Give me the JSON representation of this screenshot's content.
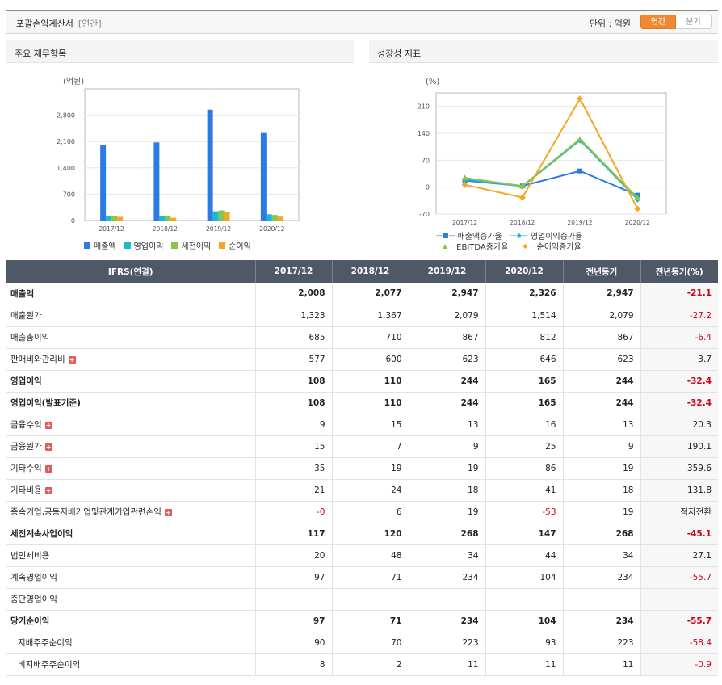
{
  "header": {
    "title": "포괄손익계산서",
    "subtitle": "[연간]",
    "unit": "단위 : 억원",
    "toggle_annual": "연간",
    "toggle_quarter": "분기"
  },
  "panels": {
    "left_title": "주요 재무항목",
    "right_title": "성장성 지표"
  },
  "chart_data": [
    {
      "type": "bar",
      "unit_label": "(억원)",
      "categories": [
        "2017/12",
        "2018/12",
        "2019/12",
        "2020/12"
      ],
      "ylim": [
        0,
        3500
      ],
      "yticks": [
        0,
        700,
        1400,
        2100,
        2800
      ],
      "ytick_labels": [
        "0",
        "700",
        "1,400",
        "2,100",
        "2,800"
      ],
      "grid": true,
      "legend_position": "bottom",
      "series": [
        {
          "name": "매출액",
          "color": "#2c7be5",
          "values": [
            2008,
            2077,
            2947,
            2326
          ]
        },
        {
          "name": "영업이익",
          "color": "#1cb8d4",
          "values": [
            108,
            110,
            244,
            165
          ]
        },
        {
          "name": "세전이익",
          "color": "#8cc34a",
          "values": [
            117,
            120,
            268,
            147
          ]
        },
        {
          "name": "순이익",
          "color": "#f5a623",
          "values": [
            97,
            71,
            234,
            104
          ]
        }
      ]
    },
    {
      "type": "line",
      "unit_label": "(%)",
      "categories": [
        "2017/12",
        "2018/12",
        "2019/12",
        "2020/12"
      ],
      "ylim": [
        -70,
        245
      ],
      "yticks": [
        -70,
        0,
        70,
        140,
        210
      ],
      "ytick_labels": [
        "-70",
        "0",
        "70",
        "140",
        "210"
      ],
      "grid": true,
      "legend_position": "bottom",
      "series": [
        {
          "name": "매출액증가율",
          "color": "#2c7be5",
          "marker": "square",
          "values": [
            17,
            3,
            42,
            -21
          ]
        },
        {
          "name": "영업이익증가율",
          "color": "#1cb8d4",
          "marker": "diamond",
          "values": [
            20,
            2,
            122,
            -32
          ]
        },
        {
          "name": "EBITDA증가율",
          "color": "#8cc34a",
          "marker": "triangle",
          "values": [
            24,
            3,
            125,
            -28
          ]
        },
        {
          "name": "순이익증가율",
          "color": "#f5a623",
          "marker": "diamond",
          "values": [
            6,
            -27,
            230,
            -56
          ]
        }
      ]
    }
  ],
  "table": {
    "header_label": "IFRS(연결)",
    "columns": [
      "2017/12",
      "2018/12",
      "2019/12",
      "2020/12",
      "전년동기",
      "전년동기(%)"
    ],
    "rows": [
      {
        "label": "매출액",
        "bold": true,
        "expand": false,
        "indent": false,
        "values": [
          "2,008",
          "2,077",
          "2,947",
          "2,326",
          "2,947",
          "-21.1"
        ],
        "neg": [
          false,
          false,
          false,
          false,
          false,
          true
        ]
      },
      {
        "label": "매출원가",
        "bold": false,
        "expand": false,
        "indent": false,
        "values": [
          "1,323",
          "1,367",
          "2,079",
          "1,514",
          "2,079",
          "-27.2"
        ],
        "neg": [
          false,
          false,
          false,
          false,
          false,
          true
        ]
      },
      {
        "label": "매출총이익",
        "bold": false,
        "expand": false,
        "indent": false,
        "values": [
          "685",
          "710",
          "867",
          "812",
          "867",
          "-6.4"
        ],
        "neg": [
          false,
          false,
          false,
          false,
          false,
          true
        ]
      },
      {
        "label": "판매비와관리비",
        "bold": false,
        "expand": true,
        "indent": false,
        "values": [
          "577",
          "600",
          "623",
          "646",
          "623",
          "3.7"
        ],
        "neg": [
          false,
          false,
          false,
          false,
          false,
          false
        ]
      },
      {
        "label": "영업이익",
        "bold": true,
        "expand": false,
        "indent": false,
        "values": [
          "108",
          "110",
          "244",
          "165",
          "244",
          "-32.4"
        ],
        "neg": [
          false,
          false,
          false,
          false,
          false,
          true
        ]
      },
      {
        "label": "영업이익(발표기준)",
        "bold": true,
        "expand": false,
        "indent": false,
        "values": [
          "108",
          "110",
          "244",
          "165",
          "244",
          "-32.4"
        ],
        "neg": [
          false,
          false,
          false,
          false,
          false,
          true
        ]
      },
      {
        "label": "금융수익",
        "bold": false,
        "expand": true,
        "indent": false,
        "values": [
          "9",
          "15",
          "13",
          "16",
          "13",
          "20.3"
        ],
        "neg": [
          false,
          false,
          false,
          false,
          false,
          false
        ]
      },
      {
        "label": "금융원가",
        "bold": false,
        "expand": true,
        "indent": false,
        "values": [
          "15",
          "7",
          "9",
          "25",
          "9",
          "190.1"
        ],
        "neg": [
          false,
          false,
          false,
          false,
          false,
          false
        ]
      },
      {
        "label": "기타수익",
        "bold": false,
        "expand": true,
        "indent": false,
        "values": [
          "35",
          "19",
          "19",
          "86",
          "19",
          "359.6"
        ],
        "neg": [
          false,
          false,
          false,
          false,
          false,
          false
        ]
      },
      {
        "label": "기타비용",
        "bold": false,
        "expand": true,
        "indent": false,
        "values": [
          "21",
          "24",
          "18",
          "41",
          "18",
          "131.8"
        ],
        "neg": [
          false,
          false,
          false,
          false,
          false,
          false
        ]
      },
      {
        "label": "종속기업,공동지배기업및관계기업관련손익",
        "bold": false,
        "expand": true,
        "indent": false,
        "values": [
          "-0",
          "6",
          "19",
          "-53",
          "19",
          "적자전환"
        ],
        "neg": [
          true,
          false,
          false,
          true,
          false,
          false
        ]
      },
      {
        "label": "세전계속사업이익",
        "bold": true,
        "expand": false,
        "indent": false,
        "values": [
          "117",
          "120",
          "268",
          "147",
          "268",
          "-45.1"
        ],
        "neg": [
          false,
          false,
          false,
          false,
          false,
          true
        ]
      },
      {
        "label": "법인세비용",
        "bold": false,
        "expand": false,
        "indent": false,
        "values": [
          "20",
          "48",
          "34",
          "44",
          "34",
          "27.1"
        ],
        "neg": [
          false,
          false,
          false,
          false,
          false,
          false
        ]
      },
      {
        "label": "계속영업이익",
        "bold": false,
        "expand": false,
        "indent": false,
        "values": [
          "97",
          "71",
          "234",
          "104",
          "234",
          "-55.7"
        ],
        "neg": [
          false,
          false,
          false,
          false,
          false,
          true
        ]
      },
      {
        "label": "중단영업이익",
        "bold": false,
        "expand": false,
        "indent": false,
        "values": [
          "",
          "",
          "",
          "",
          "",
          ""
        ],
        "neg": [
          false,
          false,
          false,
          false,
          false,
          false
        ]
      },
      {
        "label": "당기순이익",
        "bold": true,
        "expand": false,
        "indent": false,
        "values": [
          "97",
          "71",
          "234",
          "104",
          "234",
          "-55.7"
        ],
        "neg": [
          false,
          false,
          false,
          false,
          false,
          true
        ]
      },
      {
        "label": "지배주주순이익",
        "bold": false,
        "expand": false,
        "indent": true,
        "values": [
          "90",
          "70",
          "223",
          "93",
          "223",
          "-58.4"
        ],
        "neg": [
          false,
          false,
          false,
          false,
          false,
          true
        ]
      },
      {
        "label": "비지배주주순이익",
        "bold": false,
        "expand": false,
        "indent": true,
        "values": [
          "8",
          "2",
          "11",
          "11",
          "11",
          "-0.9"
        ],
        "neg": [
          false,
          false,
          false,
          false,
          false,
          true
        ]
      }
    ]
  }
}
